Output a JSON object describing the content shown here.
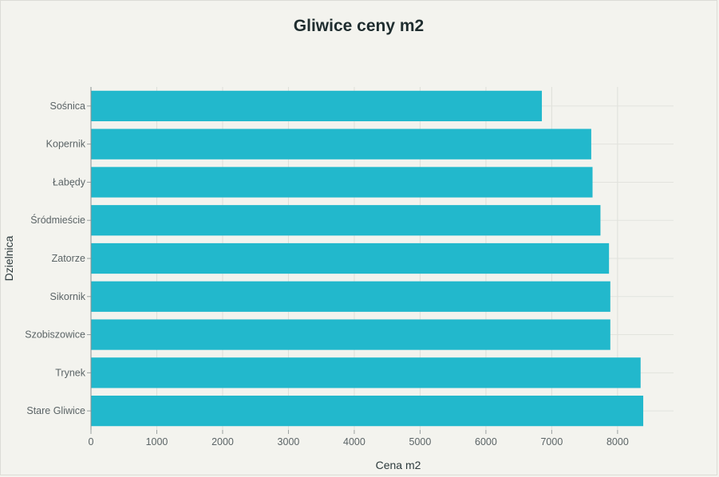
{
  "chart_data": {
    "type": "bar",
    "orientation": "horizontal",
    "title": "Gliwice ceny m2",
    "xlabel": "Cena m2",
    "ylabel": "Dzielnica",
    "categories": [
      "Sośnica",
      "Kopernik",
      "Łabędy",
      "Śródmieście",
      "Zatorze",
      "Sikornik",
      "Szobiszowice",
      "Trynek",
      "Stare Gliwice"
    ],
    "values": [
      6850,
      7600,
      7620,
      7740,
      7870,
      7890,
      7890,
      8350,
      8390
    ],
    "xlim": [
      0,
      8850
    ],
    "xticks": [
      "0",
      "1000",
      "2000",
      "3000",
      "4000",
      "5000",
      "6000",
      "7000",
      "8000"
    ],
    "grid": true,
    "bar_color": "#22b8cc"
  }
}
